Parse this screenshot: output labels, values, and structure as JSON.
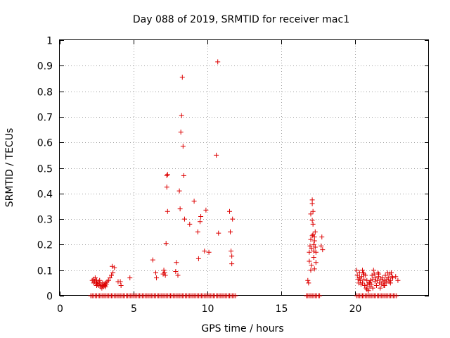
{
  "chart_data": {
    "type": "scatter",
    "title": "Day 088 of 2019, SRMTID for receiver mac1",
    "xlabel": "GPS time / hours",
    "ylabel": "SRMTID / TECUs",
    "xlim": [
      0,
      25
    ],
    "ylim": [
      0,
      1
    ],
    "xticks": [
      0,
      5,
      10,
      15,
      20
    ],
    "xtick_labels": [
      "0",
      "5",
      "10",
      "15",
      "20"
    ],
    "yticks": [
      0,
      0.1,
      0.2,
      0.3,
      0.4,
      0.5,
      0.6,
      0.7,
      0.8,
      0.9,
      1
    ],
    "ytick_labels": [
      "0",
      "0.1",
      "0.2",
      "0.3",
      "0.4",
      "0.5",
      "0.6",
      "0.7",
      "0.8",
      "0.9",
      "1"
    ],
    "grid": true,
    "marker": "+",
    "color": "#dd0000",
    "series": [
      {
        "name": "mac1",
        "points": [
          [
            2.1,
            0.0
          ],
          [
            2.2,
            0.0
          ],
          [
            2.3,
            0.0
          ],
          [
            2.4,
            0.0
          ],
          [
            2.5,
            0.0
          ],
          [
            2.6,
            0.0
          ],
          [
            2.7,
            0.0
          ],
          [
            2.8,
            0.0
          ],
          [
            2.9,
            0.0
          ],
          [
            3.0,
            0.0
          ],
          [
            3.1,
            0.0
          ],
          [
            3.2,
            0.0
          ],
          [
            3.3,
            0.0
          ],
          [
            3.4,
            0.0
          ],
          [
            3.5,
            0.0
          ],
          [
            3.6,
            0.0
          ],
          [
            3.7,
            0.0
          ],
          [
            3.8,
            0.0
          ],
          [
            3.9,
            0.0
          ],
          [
            4.0,
            0.0
          ],
          [
            4.1,
            0.0
          ],
          [
            4.2,
            0.0
          ],
          [
            4.3,
            0.0
          ],
          [
            4.4,
            0.0
          ],
          [
            4.5,
            0.0
          ],
          [
            4.6,
            0.0
          ],
          [
            4.7,
            0.0
          ],
          [
            4.8,
            0.0
          ],
          [
            4.9,
            0.0
          ],
          [
            5.0,
            0.0
          ],
          [
            5.1,
            0.0
          ],
          [
            5.2,
            0.0
          ],
          [
            5.3,
            0.0
          ],
          [
            5.4,
            0.0
          ],
          [
            5.5,
            0.0
          ],
          [
            5.6,
            0.0
          ],
          [
            5.7,
            0.0
          ],
          [
            5.8,
            0.0
          ],
          [
            5.9,
            0.0
          ],
          [
            6.0,
            0.0
          ],
          [
            6.1,
            0.0
          ],
          [
            6.2,
            0.0
          ],
          [
            6.3,
            0.0
          ],
          [
            6.4,
            0.0
          ],
          [
            6.5,
            0.0
          ],
          [
            6.6,
            0.0
          ],
          [
            6.7,
            0.0
          ],
          [
            6.8,
            0.0
          ],
          [
            6.9,
            0.0
          ],
          [
            7.0,
            0.0
          ],
          [
            7.1,
            0.0
          ],
          [
            7.2,
            0.0
          ],
          [
            7.3,
            0.0
          ],
          [
            7.4,
            0.0
          ],
          [
            7.5,
            0.0
          ],
          [
            7.6,
            0.0
          ],
          [
            7.7,
            0.0
          ],
          [
            7.8,
            0.0
          ],
          [
            7.9,
            0.0
          ],
          [
            8.0,
            0.0
          ],
          [
            8.1,
            0.0
          ],
          [
            8.2,
            0.0
          ],
          [
            8.3,
            0.0
          ],
          [
            8.4,
            0.0
          ],
          [
            8.5,
            0.0
          ],
          [
            8.6,
            0.0
          ],
          [
            8.7,
            0.0
          ],
          [
            8.8,
            0.0
          ],
          [
            8.9,
            0.0
          ],
          [
            9.0,
            0.0
          ],
          [
            9.1,
            0.0
          ],
          [
            9.2,
            0.0
          ],
          [
            9.3,
            0.0
          ],
          [
            9.4,
            0.0
          ],
          [
            9.5,
            0.0
          ],
          [
            9.6,
            0.0
          ],
          [
            9.7,
            0.0
          ],
          [
            9.8,
            0.0
          ],
          [
            9.9,
            0.0
          ],
          [
            10.0,
            0.0
          ],
          [
            10.1,
            0.0
          ],
          [
            10.2,
            0.0
          ],
          [
            10.3,
            0.0
          ],
          [
            10.4,
            0.0
          ],
          [
            10.5,
            0.0
          ],
          [
            10.6,
            0.0
          ],
          [
            10.7,
            0.0
          ],
          [
            10.8,
            0.0
          ],
          [
            10.9,
            0.0
          ],
          [
            11.0,
            0.0
          ],
          [
            11.1,
            0.0
          ],
          [
            11.2,
            0.0
          ],
          [
            11.3,
            0.0
          ],
          [
            11.4,
            0.0
          ],
          [
            11.5,
            0.0
          ],
          [
            11.6,
            0.0
          ],
          [
            11.7,
            0.0
          ],
          [
            11.8,
            0.0
          ],
          [
            11.9,
            0.0
          ],
          [
            16.7,
            0.0
          ],
          [
            16.8,
            0.0
          ],
          [
            16.9,
            0.0
          ],
          [
            17.0,
            0.0
          ],
          [
            17.1,
            0.0
          ],
          [
            17.2,
            0.0
          ],
          [
            17.3,
            0.0
          ],
          [
            17.4,
            0.0
          ],
          [
            17.5,
            0.0
          ],
          [
            17.6,
            0.0
          ],
          [
            20.1,
            0.0
          ],
          [
            20.2,
            0.0
          ],
          [
            20.3,
            0.0
          ],
          [
            20.4,
            0.0
          ],
          [
            20.5,
            0.0
          ],
          [
            20.6,
            0.0
          ],
          [
            20.7,
            0.0
          ],
          [
            20.8,
            0.0
          ],
          [
            20.9,
            0.0
          ],
          [
            21.0,
            0.0
          ],
          [
            21.1,
            0.0
          ],
          [
            21.2,
            0.0
          ],
          [
            21.3,
            0.0
          ],
          [
            21.4,
            0.0
          ],
          [
            21.5,
            0.0
          ],
          [
            21.6,
            0.0
          ],
          [
            21.7,
            0.0
          ],
          [
            21.8,
            0.0
          ],
          [
            21.9,
            0.0
          ],
          [
            22.0,
            0.0
          ],
          [
            22.1,
            0.0
          ],
          [
            22.2,
            0.0
          ],
          [
            22.3,
            0.0
          ],
          [
            22.4,
            0.0
          ],
          [
            22.5,
            0.0
          ],
          [
            22.6,
            0.0
          ],
          [
            22.7,
            0.0
          ],
          [
            22.8,
            0.0
          ],
          [
            2.2,
            0.06
          ],
          [
            2.3,
            0.065
          ],
          [
            2.35,
            0.055
          ],
          [
            2.4,
            0.07
          ],
          [
            2.45,
            0.05
          ],
          [
            2.5,
            0.06
          ],
          [
            2.55,
            0.045
          ],
          [
            2.6,
            0.055
          ],
          [
            2.65,
            0.04
          ],
          [
            2.7,
            0.05
          ],
          [
            2.75,
            0.035
          ],
          [
            2.8,
            0.045
          ],
          [
            2.85,
            0.03
          ],
          [
            2.9,
            0.04
          ],
          [
            2.95,
            0.035
          ],
          [
            3.0,
            0.045
          ],
          [
            3.05,
            0.04
          ],
          [
            3.1,
            0.05
          ],
          [
            3.15,
            0.045
          ],
          [
            3.2,
            0.055
          ],
          [
            3.3,
            0.06
          ],
          [
            3.4,
            0.07
          ],
          [
            3.5,
            0.08
          ],
          [
            3.55,
            0.115
          ],
          [
            3.6,
            0.09
          ],
          [
            3.7,
            0.11
          ],
          [
            2.3,
            0.05
          ],
          [
            2.5,
            0.04
          ],
          [
            2.7,
            0.06
          ],
          [
            2.9,
            0.05
          ],
          [
            3.1,
            0.035
          ],
          [
            3.95,
            0.055
          ],
          [
            4.1,
            0.055
          ],
          [
            4.15,
            0.04
          ],
          [
            4.75,
            0.07
          ],
          [
            6.3,
            0.14
          ],
          [
            6.5,
            0.09
          ],
          [
            6.55,
            0.07
          ],
          [
            7.0,
            0.085
          ],
          [
            7.05,
            0.1
          ],
          [
            7.1,
            0.09
          ],
          [
            7.15,
            0.08
          ],
          [
            7.2,
            0.205
          ],
          [
            7.25,
            0.425
          ],
          [
            7.25,
            0.47
          ],
          [
            7.3,
            0.475
          ],
          [
            7.3,
            0.33
          ],
          [
            7.85,
            0.095
          ],
          [
            7.9,
            0.13
          ],
          [
            8.0,
            0.08
          ],
          [
            8.1,
            0.41
          ],
          [
            8.15,
            0.34
          ],
          [
            8.2,
            0.64
          ],
          [
            8.25,
            0.705
          ],
          [
            8.3,
            0.855
          ],
          [
            8.35,
            0.585
          ],
          [
            8.4,
            0.47
          ],
          [
            8.45,
            0.3
          ],
          [
            8.8,
            0.28
          ],
          [
            9.1,
            0.37
          ],
          [
            9.35,
            0.25
          ],
          [
            9.4,
            0.145
          ],
          [
            9.5,
            0.29
          ],
          [
            9.55,
            0.31
          ],
          [
            9.8,
            0.175
          ],
          [
            9.9,
            0.335
          ],
          [
            10.1,
            0.17
          ],
          [
            10.6,
            0.55
          ],
          [
            10.7,
            0.915
          ],
          [
            10.75,
            0.245
          ],
          [
            11.5,
            0.33
          ],
          [
            11.55,
            0.25
          ],
          [
            11.6,
            0.175
          ],
          [
            11.65,
            0.155
          ],
          [
            11.65,
            0.125
          ],
          [
            11.7,
            0.3
          ],
          [
            16.8,
            0.06
          ],
          [
            16.85,
            0.05
          ],
          [
            16.9,
            0.135
          ],
          [
            16.9,
            0.17
          ],
          [
            16.95,
            0.195
          ],
          [
            17.0,
            0.22
          ],
          [
            17.0,
            0.32
          ],
          [
            17.05,
            0.12
          ],
          [
            17.05,
            0.185
          ],
          [
            17.1,
            0.235
          ],
          [
            17.1,
            0.295
          ],
          [
            17.1,
            0.36
          ],
          [
            17.1,
            0.375
          ],
          [
            17.15,
            0.33
          ],
          [
            17.15,
            0.24
          ],
          [
            17.2,
            0.2
          ],
          [
            17.2,
            0.175
          ],
          [
            17.2,
            0.15
          ],
          [
            17.25,
            0.105
          ],
          [
            17.25,
            0.215
          ],
          [
            17.3,
            0.25
          ],
          [
            17.3,
            0.19
          ],
          [
            17.35,
            0.13
          ],
          [
            17.35,
            0.17
          ],
          [
            17.7,
            0.195
          ],
          [
            17.75,
            0.23
          ],
          [
            17.8,
            0.18
          ],
          [
            17.0,
            0.1
          ],
          [
            17.15,
            0.28
          ],
          [
            17.25,
            0.23
          ],
          [
            20.1,
            0.1
          ],
          [
            20.15,
            0.08
          ],
          [
            20.2,
            0.065
          ],
          [
            20.25,
            0.05
          ],
          [
            20.3,
            0.09
          ],
          [
            20.35,
            0.06
          ],
          [
            20.4,
            0.045
          ],
          [
            20.45,
            0.075
          ],
          [
            20.5,
            0.05
          ],
          [
            20.55,
            0.09
          ],
          [
            20.6,
            0.065
          ],
          [
            20.65,
            0.04
          ],
          [
            20.7,
            0.08
          ],
          [
            20.75,
            0.03
          ],
          [
            20.8,
            0.025
          ],
          [
            20.85,
            0.045
          ],
          [
            20.9,
            0.02
          ],
          [
            20.95,
            0.05
          ],
          [
            21.0,
            0.035
          ],
          [
            21.05,
            0.06
          ],
          [
            21.1,
            0.045
          ],
          [
            21.15,
            0.08
          ],
          [
            21.2,
            0.065
          ],
          [
            21.25,
            0.1
          ],
          [
            21.3,
            0.085
          ],
          [
            21.35,
            0.055
          ],
          [
            21.4,
            0.07
          ],
          [
            21.45,
            0.04
          ],
          [
            21.5,
            0.06
          ],
          [
            21.55,
            0.09
          ],
          [
            21.6,
            0.075
          ],
          [
            21.65,
            0.05
          ],
          [
            21.7,
            0.03
          ],
          [
            21.75,
            0.065
          ],
          [
            21.8,
            0.045
          ],
          [
            21.85,
            0.07
          ],
          [
            21.9,
            0.055
          ],
          [
            21.95,
            0.04
          ],
          [
            22.0,
            0.06
          ],
          [
            22.05,
            0.08
          ],
          [
            22.1,
            0.05
          ],
          [
            22.15,
            0.065
          ],
          [
            22.2,
            0.09
          ],
          [
            22.25,
            0.07
          ],
          [
            22.3,
            0.055
          ],
          [
            22.35,
            0.085
          ],
          [
            22.4,
            0.06
          ],
          [
            22.45,
            0.09
          ],
          [
            22.5,
            0.075
          ],
          [
            22.55,
            0.07
          ],
          [
            20.3,
            0.07
          ],
          [
            20.6,
            0.085
          ],
          [
            20.8,
            0.06
          ],
          [
            21.0,
            0.05
          ],
          [
            21.2,
            0.03
          ],
          [
            21.6,
            0.085
          ],
          [
            22.0,
            0.04
          ],
          [
            22.4,
            0.05
          ],
          [
            20.5,
            0.1
          ],
          [
            22.75,
            0.075
          ],
          [
            22.9,
            0.06
          ]
        ]
      }
    ]
  }
}
